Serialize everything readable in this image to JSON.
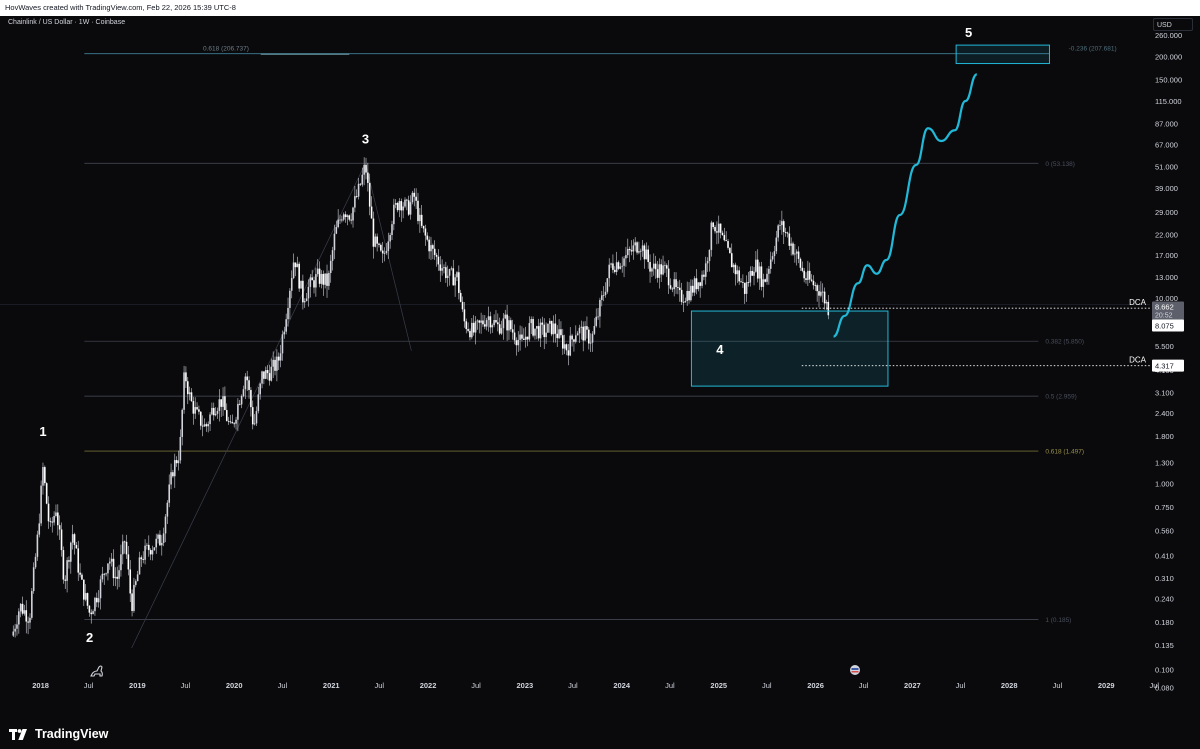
{
  "header": {
    "attribution": "HovWaves created with TradingView.com, Feb 22, 2026 15:39 UTC-8"
  },
  "chart_header": {
    "symbol": "Chainlink / US Dollar · 1W · Coinbase",
    "currency_button": "USD"
  },
  "footer": {
    "brand": "TradingView"
  },
  "colors": {
    "background": "#0a0a0c",
    "candles": "#d1d4dc",
    "accent": "#22b8d8",
    "fib_line": "#4a4f5c",
    "fib_0618_low": "#9b9248"
  },
  "chart_data": {
    "type": "candlestick",
    "title": "Chainlink / US Dollar · 1W · Coinbase",
    "y_scale": "log",
    "ylim": [
      0.065,
      330
    ],
    "xlim": [
      "2017-08-01",
      "2029-06-15"
    ],
    "y_ticks": [
      "260.000",
      "200.000",
      "150.000",
      "115.000",
      "87.000",
      "67.000",
      "51.000",
      "39.000",
      "29.000",
      "22.000",
      "17.000",
      "13.000",
      "10.000",
      "7.400",
      "5.500",
      "4.100",
      "3.100",
      "2.400",
      "1.800",
      "1.300",
      "1.000",
      "0.750",
      "0.560",
      "0.410",
      "0.310",
      "0.240",
      "0.180",
      "0.135",
      "0.100",
      "0.080"
    ],
    "x_ticks": [
      {
        "label": "2018",
        "date": "2018-01-01"
      },
      {
        "label": "Jul",
        "date": "2018-07-01"
      },
      {
        "label": "2019",
        "date": "2019-01-01"
      },
      {
        "label": "Jul",
        "date": "2019-07-01"
      },
      {
        "label": "2020",
        "date": "2020-01-01"
      },
      {
        "label": "Jul",
        "date": "2020-07-01"
      },
      {
        "label": "2021",
        "date": "2021-01-01"
      },
      {
        "label": "Jul",
        "date": "2021-07-01"
      },
      {
        "label": "2022",
        "date": "2022-01-01"
      },
      {
        "label": "Jul",
        "date": "2022-07-01"
      },
      {
        "label": "2023",
        "date": "2023-01-01"
      },
      {
        "label": "Jul",
        "date": "2023-07-01"
      },
      {
        "label": "2024",
        "date": "2024-01-01"
      },
      {
        "label": "Jul",
        "date": "2024-07-01"
      },
      {
        "label": "2025",
        "date": "2025-01-01"
      },
      {
        "label": "Jul",
        "date": "2025-07-01"
      },
      {
        "label": "2026",
        "date": "2026-01-01"
      },
      {
        "label": "Jul",
        "date": "2026-07-01"
      },
      {
        "label": "2027",
        "date": "2027-01-01"
      },
      {
        "label": "Jul",
        "date": "2027-07-01"
      },
      {
        "label": "2028",
        "date": "2028-01-01"
      },
      {
        "label": "Jul",
        "date": "2028-07-01"
      },
      {
        "label": "2029",
        "date": "2029-01-01"
      },
      {
        "label": "Jul",
        "date": "2029-07-01"
      }
    ],
    "price_path": [
      [
        "2017-09-20",
        0.16
      ],
      [
        "2017-10-15",
        0.22
      ],
      [
        "2017-11-20",
        0.19
      ],
      [
        "2017-12-20",
        0.5
      ],
      [
        "2018-01-10",
        1.2
      ],
      [
        "2018-02-05",
        0.55
      ],
      [
        "2018-03-01",
        0.75
      ],
      [
        "2018-04-01",
        0.3
      ],
      [
        "2018-05-01",
        0.55
      ],
      [
        "2018-06-01",
        0.3
      ],
      [
        "2018-07-05",
        0.2
      ],
      [
        "2018-08-01",
        0.25
      ],
      [
        "2018-09-15",
        0.4
      ],
      [
        "2018-10-15",
        0.3
      ],
      [
        "2018-11-15",
        0.5
      ],
      [
        "2018-12-10",
        0.22
      ],
      [
        "2019-01-15",
        0.4
      ],
      [
        "2019-02-15",
        0.45
      ],
      [
        "2019-04-01",
        0.5
      ],
      [
        "2019-05-15",
        1.2
      ],
      [
        "2019-06-10",
        1.5
      ],
      [
        "2019-06-28",
        4.0
      ],
      [
        "2019-07-20",
        2.8
      ],
      [
        "2019-08-15",
        2.3
      ],
      [
        "2019-09-15",
        2.0
      ],
      [
        "2019-10-15",
        2.6
      ],
      [
        "2019-11-15",
        2.8
      ],
      [
        "2019-12-20",
        1.9
      ],
      [
        "2020-02-15",
        4.0
      ],
      [
        "2020-03-15",
        2.0
      ],
      [
        "2020-04-15",
        3.8
      ],
      [
        "2020-05-15",
        4.0
      ],
      [
        "2020-06-15",
        4.5
      ],
      [
        "2020-07-10",
        7.5
      ],
      [
        "2020-08-15",
        17.0
      ],
      [
        "2020-09-15",
        10.0
      ],
      [
        "2020-10-10",
        11.5
      ],
      [
        "2020-11-10",
        13.0
      ],
      [
        "2020-12-20",
        12.0
      ],
      [
        "2021-01-15",
        22.0
      ],
      [
        "2021-02-15",
        30.0
      ],
      [
        "2021-03-15",
        28.0
      ],
      [
        "2021-04-15",
        38.0
      ],
      [
        "2021-05-10",
        52.0
      ],
      [
        "2021-06-10",
        20.0
      ],
      [
        "2021-07-15",
        16.0
      ],
      [
        "2021-08-20",
        28.0
      ],
      [
        "2021-09-15",
        34.0
      ],
      [
        "2021-10-15",
        30.0
      ],
      [
        "2021-11-10",
        35.0
      ],
      [
        "2021-12-05",
        24.0
      ],
      [
        "2022-01-15",
        18.0
      ],
      [
        "2022-02-20",
        15.0
      ],
      [
        "2022-03-20",
        13.0
      ],
      [
        "2022-04-20",
        13.0
      ],
      [
        "2022-05-15",
        7.5
      ],
      [
        "2022-06-20",
        6.5
      ],
      [
        "2022-08-15",
        8.0
      ],
      [
        "2022-09-20",
        7.0
      ],
      [
        "2022-10-20",
        7.5
      ],
      [
        "2022-11-20",
        6.5
      ],
      [
        "2022-12-20",
        5.6
      ],
      [
        "2023-01-20",
        7.0
      ],
      [
        "2023-03-15",
        6.5
      ],
      [
        "2023-04-15",
        7.0
      ],
      [
        "2023-06-10",
        5.3
      ],
      [
        "2023-07-15",
        6.8
      ],
      [
        "2023-09-10",
        6.0
      ],
      [
        "2023-10-20",
        10.0
      ],
      [
        "2023-11-20",
        15.0
      ],
      [
        "2024-01-05",
        16.0
      ],
      [
        "2024-03-10",
        20.0
      ],
      [
        "2024-04-20",
        14.5
      ],
      [
        "2024-06-15",
        14.0
      ],
      [
        "2024-08-05",
        10.0
      ],
      [
        "2024-09-20",
        11.0
      ],
      [
        "2024-11-10",
        14.0
      ],
      [
        "2024-12-10",
        26.0
      ],
      [
        "2025-01-05",
        22.0
      ],
      [
        "2025-02-15",
        16.0
      ],
      [
        "2025-04-10",
        11.0
      ],
      [
        "2025-05-15",
        15.5
      ],
      [
        "2025-06-20",
        12.0
      ],
      [
        "2025-08-20",
        25.0
      ],
      [
        "2025-09-15",
        22.0
      ],
      [
        "2025-10-20",
        17.0
      ],
      [
        "2025-11-20",
        13.0
      ],
      [
        "2025-12-20",
        12.0
      ],
      [
        "2026-01-20",
        11.0
      ],
      [
        "2026-02-20",
        8.7
      ]
    ],
    "fib_levels": [
      {
        "label": "0.618 (206.737)",
        "price": 206.737
      },
      {
        "label": "-0.236 (207.681)",
        "price": 207.681
      },
      {
        "label": "0 (53.138)",
        "price": 53.138
      },
      {
        "label": "0.382 (5.850)",
        "price": 5.85
      },
      {
        "label": "0.5 (2.959)",
        "price": 2.959
      },
      {
        "label": "0.618 (1.497)",
        "price": 1.497
      },
      {
        "label": "1 (0.185)",
        "price": 0.185
      }
    ],
    "wave_labels": [
      {
        "label": "1",
        "date": "2018-01-10",
        "price": 1.8
      },
      {
        "label": "2",
        "date": "2018-07-05",
        "price": 0.14
      },
      {
        "label": "3",
        "date": "2021-05-10",
        "price": 68
      },
      {
        "label": "4",
        "date": "2025-01-05",
        "price": 5.0
      },
      {
        "label": "5",
        "date": "2027-08-01",
        "price": 255
      }
    ],
    "zones": [
      {
        "name": "wave-4-box",
        "from": "2024-09-20",
        "to": "2026-10-01",
        "high": 8.5,
        "low": 3.35
      },
      {
        "name": "wave-5-box",
        "from": "2027-06-15",
        "to": "2028-06-01",
        "high": 230,
        "low": 183
      }
    ],
    "projection": [
      [
        "2026-03-10",
        6.2
      ],
      [
        "2026-04-20",
        8.0
      ],
      [
        "2026-06-10",
        12.0
      ],
      [
        "2026-07-15",
        15.0
      ],
      [
        "2026-08-20",
        13.5
      ],
      [
        "2026-09-25",
        16.0
      ],
      [
        "2026-11-15",
        28.0
      ],
      [
        "2027-01-15",
        52.0
      ],
      [
        "2027-03-01",
        82.0
      ],
      [
        "2027-04-20",
        70.0
      ],
      [
        "2027-06-10",
        80.0
      ],
      [
        "2027-07-20",
        115.0
      ],
      [
        "2027-09-01",
        160.0
      ]
    ],
    "dca_levels": [
      {
        "label": "DCA",
        "price": 8.075,
        "tag": "8.075"
      },
      {
        "label": "DCA",
        "price": 4.317,
        "tag": "4.317"
      }
    ],
    "current_price": {
      "price": "8.662",
      "countdown": "20:52"
    }
  }
}
